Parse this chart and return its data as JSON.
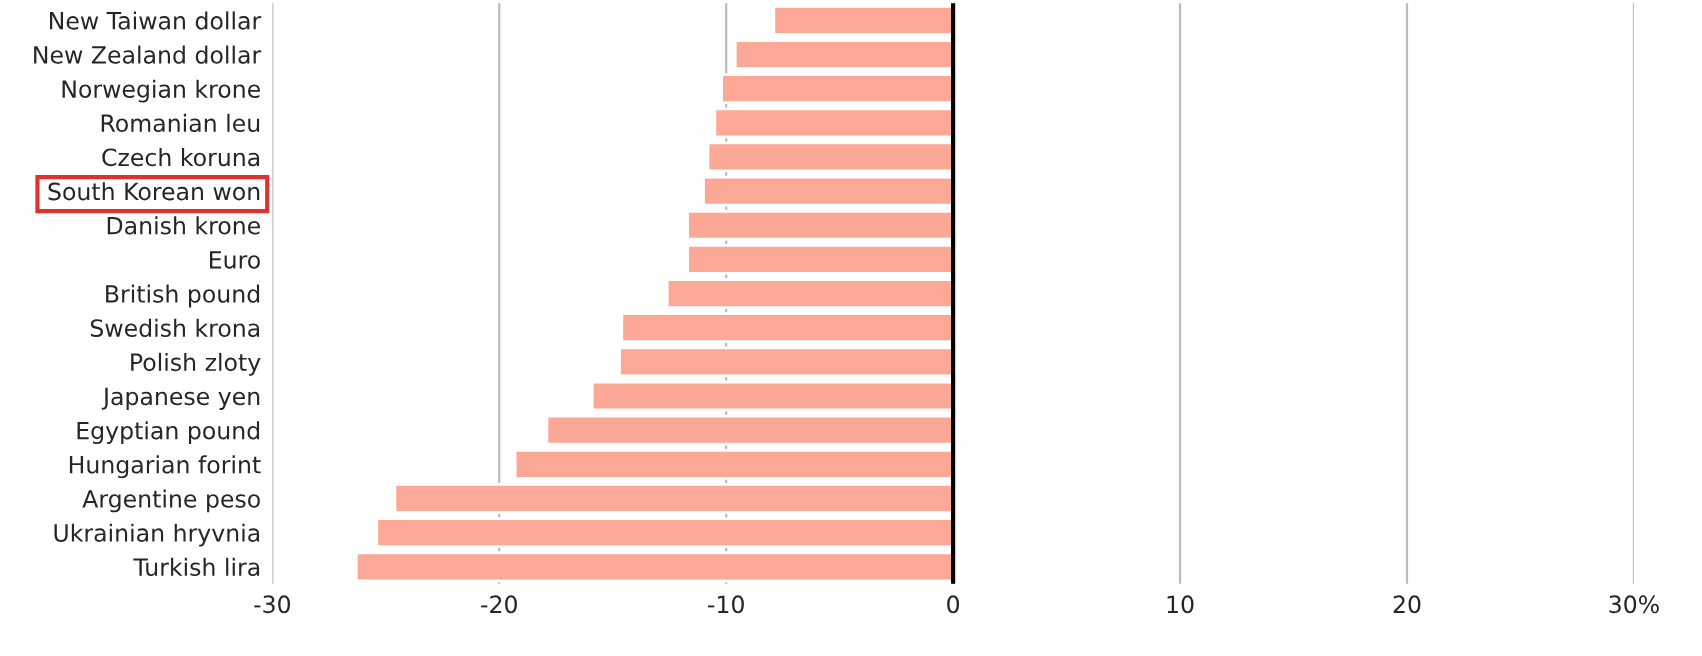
{
  "chart_data": {
    "type": "bar",
    "orientation": "horizontal",
    "categories": [
      "New Taiwan dollar",
      "New Zealand dollar",
      "Norwegian krone",
      "Romanian leu",
      "Czech koruna",
      "South Korean won",
      "Danish krone",
      "Euro",
      "British pound",
      "Swedish krona",
      "Polish zloty",
      "Japanese yen",
      "Egyptian pound",
      "Hungarian forint",
      "Argentine peso",
      "Ukrainian hryvnia",
      "Turkish lira"
    ],
    "values": [
      -7.9,
      -9.6,
      -10.2,
      -10.5,
      -10.8,
      -11.0,
      -11.7,
      -11.7,
      -12.6,
      -14.6,
      -14.7,
      -15.9,
      -17.9,
      -19.3,
      -24.6,
      -25.4,
      -26.3
    ],
    "color": "#fca897",
    "xlim": [
      -30,
      30
    ],
    "xticks": [
      -30,
      -20,
      -10,
      0,
      10,
      20,
      {
        "value": 30,
        "label": "30%"
      }
    ],
    "grid": "x",
    "ref_lines": [
      {
        "axis": "x",
        "value": 0,
        "color": "#000000"
      }
    ]
  }
}
